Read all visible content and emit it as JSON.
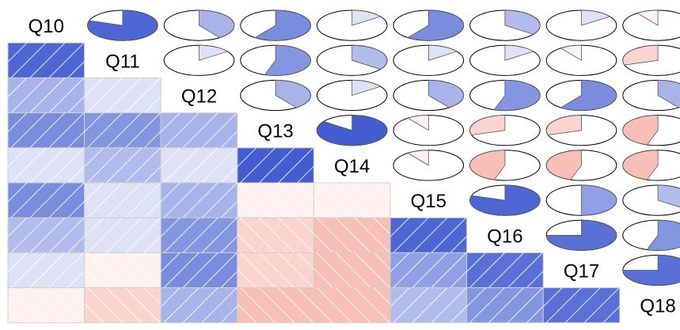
{
  "chart_data": {
    "type": "heatmap",
    "variables": [
      "Q10",
      "Q11",
      "Q12",
      "Q13",
      "Q14",
      "Q15",
      "Q16",
      "Q17",
      "Q18"
    ],
    "matrix": [
      [
        1.0,
        0.8,
        0.4,
        0.6,
        0.15,
        0.6,
        0.35,
        0.15,
        -0.1
      ],
      [
        0.8,
        1.0,
        0.15,
        0.55,
        0.35,
        0.15,
        0.15,
        -0.1,
        -0.3
      ],
      [
        0.4,
        0.15,
        1.0,
        0.4,
        0.15,
        0.4,
        0.55,
        0.6,
        0.4
      ],
      [
        0.6,
        0.55,
        0.4,
        1.0,
        0.85,
        -0.1,
        -0.3,
        -0.3,
        -0.45
      ],
      [
        0.15,
        0.35,
        0.15,
        0.85,
        1.0,
        -0.1,
        -0.45,
        -0.45,
        -0.45
      ],
      [
        0.6,
        0.15,
        0.4,
        -0.1,
        -0.1,
        1.0,
        0.8,
        0.5,
        0.35
      ],
      [
        0.35,
        0.15,
        0.55,
        -0.3,
        -0.45,
        0.8,
        1.0,
        0.75,
        0.55
      ],
      [
        0.15,
        -0.1,
        0.6,
        -0.3,
        -0.45,
        0.5,
        0.75,
        1.0,
        0.75
      ],
      [
        -0.1,
        -0.3,
        0.4,
        -0.45,
        -0.45,
        0.35,
        0.55,
        0.75,
        1.0
      ]
    ],
    "lower_panel": "shade",
    "upper_panel": "pie",
    "diagonal": "variable-names",
    "colors": {
      "positive": "#2240c8",
      "negative": "#f07060",
      "neutral": "#ffffff",
      "grid": "#cfcfcf"
    }
  }
}
